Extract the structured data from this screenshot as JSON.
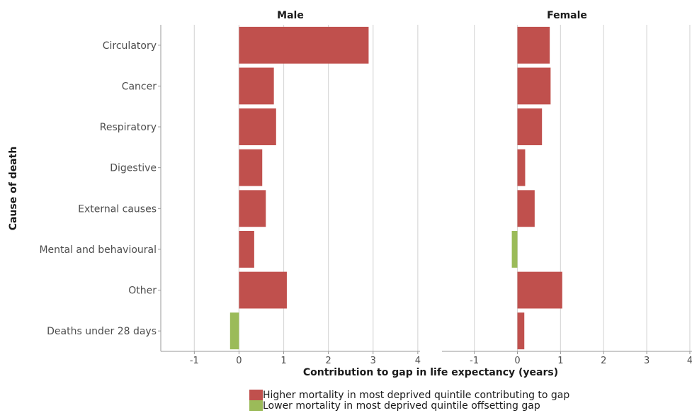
{
  "chart_data": {
    "type": "bar",
    "orientation": "horizontal",
    "facet_by": "sex",
    "panels": [
      {
        "title": "Male",
        "categories": [
          "Circulatory",
          "Cancer",
          "Respiratory",
          "Digestive",
          "External causes",
          "Mental and behavioural",
          "Other",
          "Deaths under 28 days"
        ],
        "values": [
          2.9,
          0.78,
          0.83,
          0.52,
          0.6,
          0.34,
          1.07,
          -0.2
        ]
      },
      {
        "title": "Female",
        "categories": [
          "Circulatory",
          "Cancer",
          "Respiratory",
          "Digestive",
          "External causes",
          "Mental and behavioural",
          "Other",
          "Deaths under 28 days"
        ],
        "values": [
          0.75,
          0.77,
          0.57,
          0.18,
          0.4,
          -0.13,
          1.04,
          0.16
        ]
      }
    ],
    "xlabel": "Contribution to gap in life expectancy (years)",
    "ylabel": "Cause of death",
    "xlim": [
      -1.75,
      4.05
    ],
    "xticks": [
      -1,
      0,
      1,
      2,
      3,
      4
    ],
    "grid": "vertical",
    "legend_position": "bottom",
    "legend": [
      {
        "label": "Higher mortality in most deprived quintile contributing to gap",
        "color": "#c0504d"
      },
      {
        "label": "Lower mortality in most deprived quintile offsetting gap",
        "color": "#9bbb59"
      }
    ]
  }
}
